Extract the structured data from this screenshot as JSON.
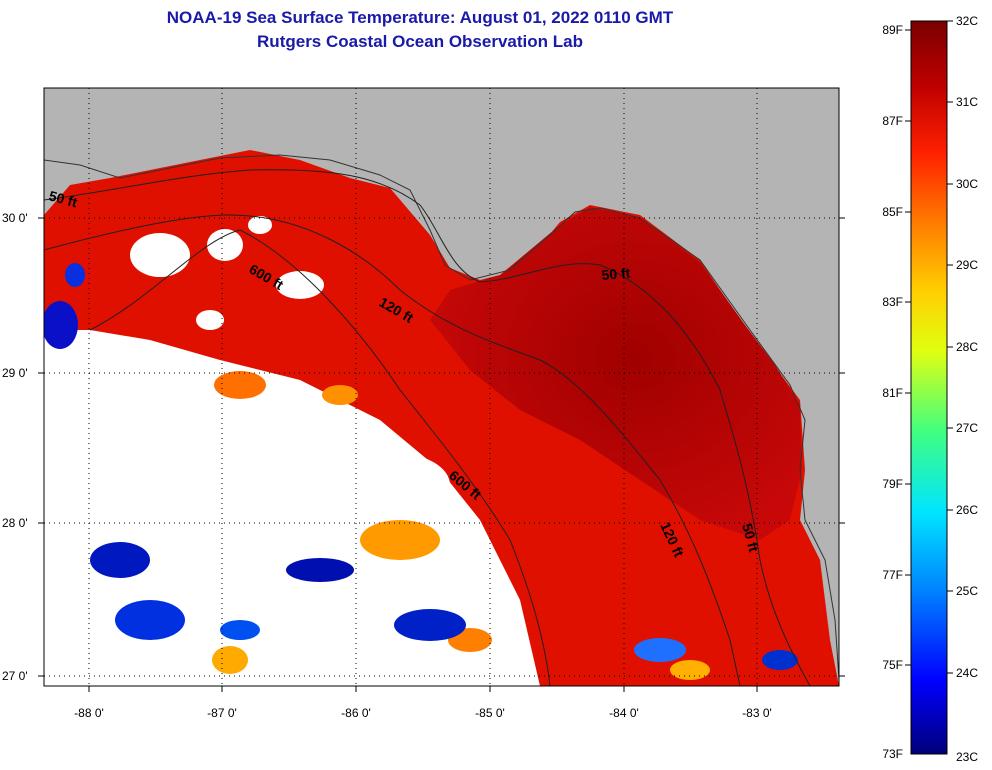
{
  "header": {
    "title": "NOAA-19 Sea Surface Temperature:  August 01, 2022 0110 GMT",
    "subtitle": "Rutgers Coastal Ocean Observation Lab"
  },
  "axes": {
    "longitude_labels": [
      "-88 0'",
      "-87 0'",
      "-86 0'",
      "-85 0'",
      "-84 0'",
      "-83 0'"
    ],
    "latitude_labels": [
      "30 0'",
      "29 0'",
      "28 0'",
      "27 0'"
    ]
  },
  "contours": {
    "labels": [
      "50 ft",
      "600 ft",
      "120 ft",
      "50 ft",
      "600 ft",
      "120 ft",
      "50 ft"
    ]
  },
  "colorbar": {
    "fahrenheit_labels": [
      "89F",
      "87F",
      "85F",
      "83F",
      "81F",
      "79F",
      "77F",
      "75F",
      "73F"
    ],
    "celsius_labels": [
      "32C",
      "31C",
      "30C",
      "29C",
      "28C",
      "27C",
      "26C",
      "25C",
      "24C",
      "23C"
    ],
    "colors": [
      "#00007a",
      "#0000ff",
      "#0080ff",
      "#00e5ff",
      "#40ff80",
      "#e0ff10",
      "#ffd000",
      "#ff8000",
      "#ff2000",
      "#c00000",
      "#7a0000"
    ]
  },
  "colors": {
    "land": "#b4b4b4",
    "no_data": "#ffffff",
    "sst_dark_red": "#a00000",
    "sst_red": "#e01000",
    "title_blue": "#1a1aa8"
  }
}
